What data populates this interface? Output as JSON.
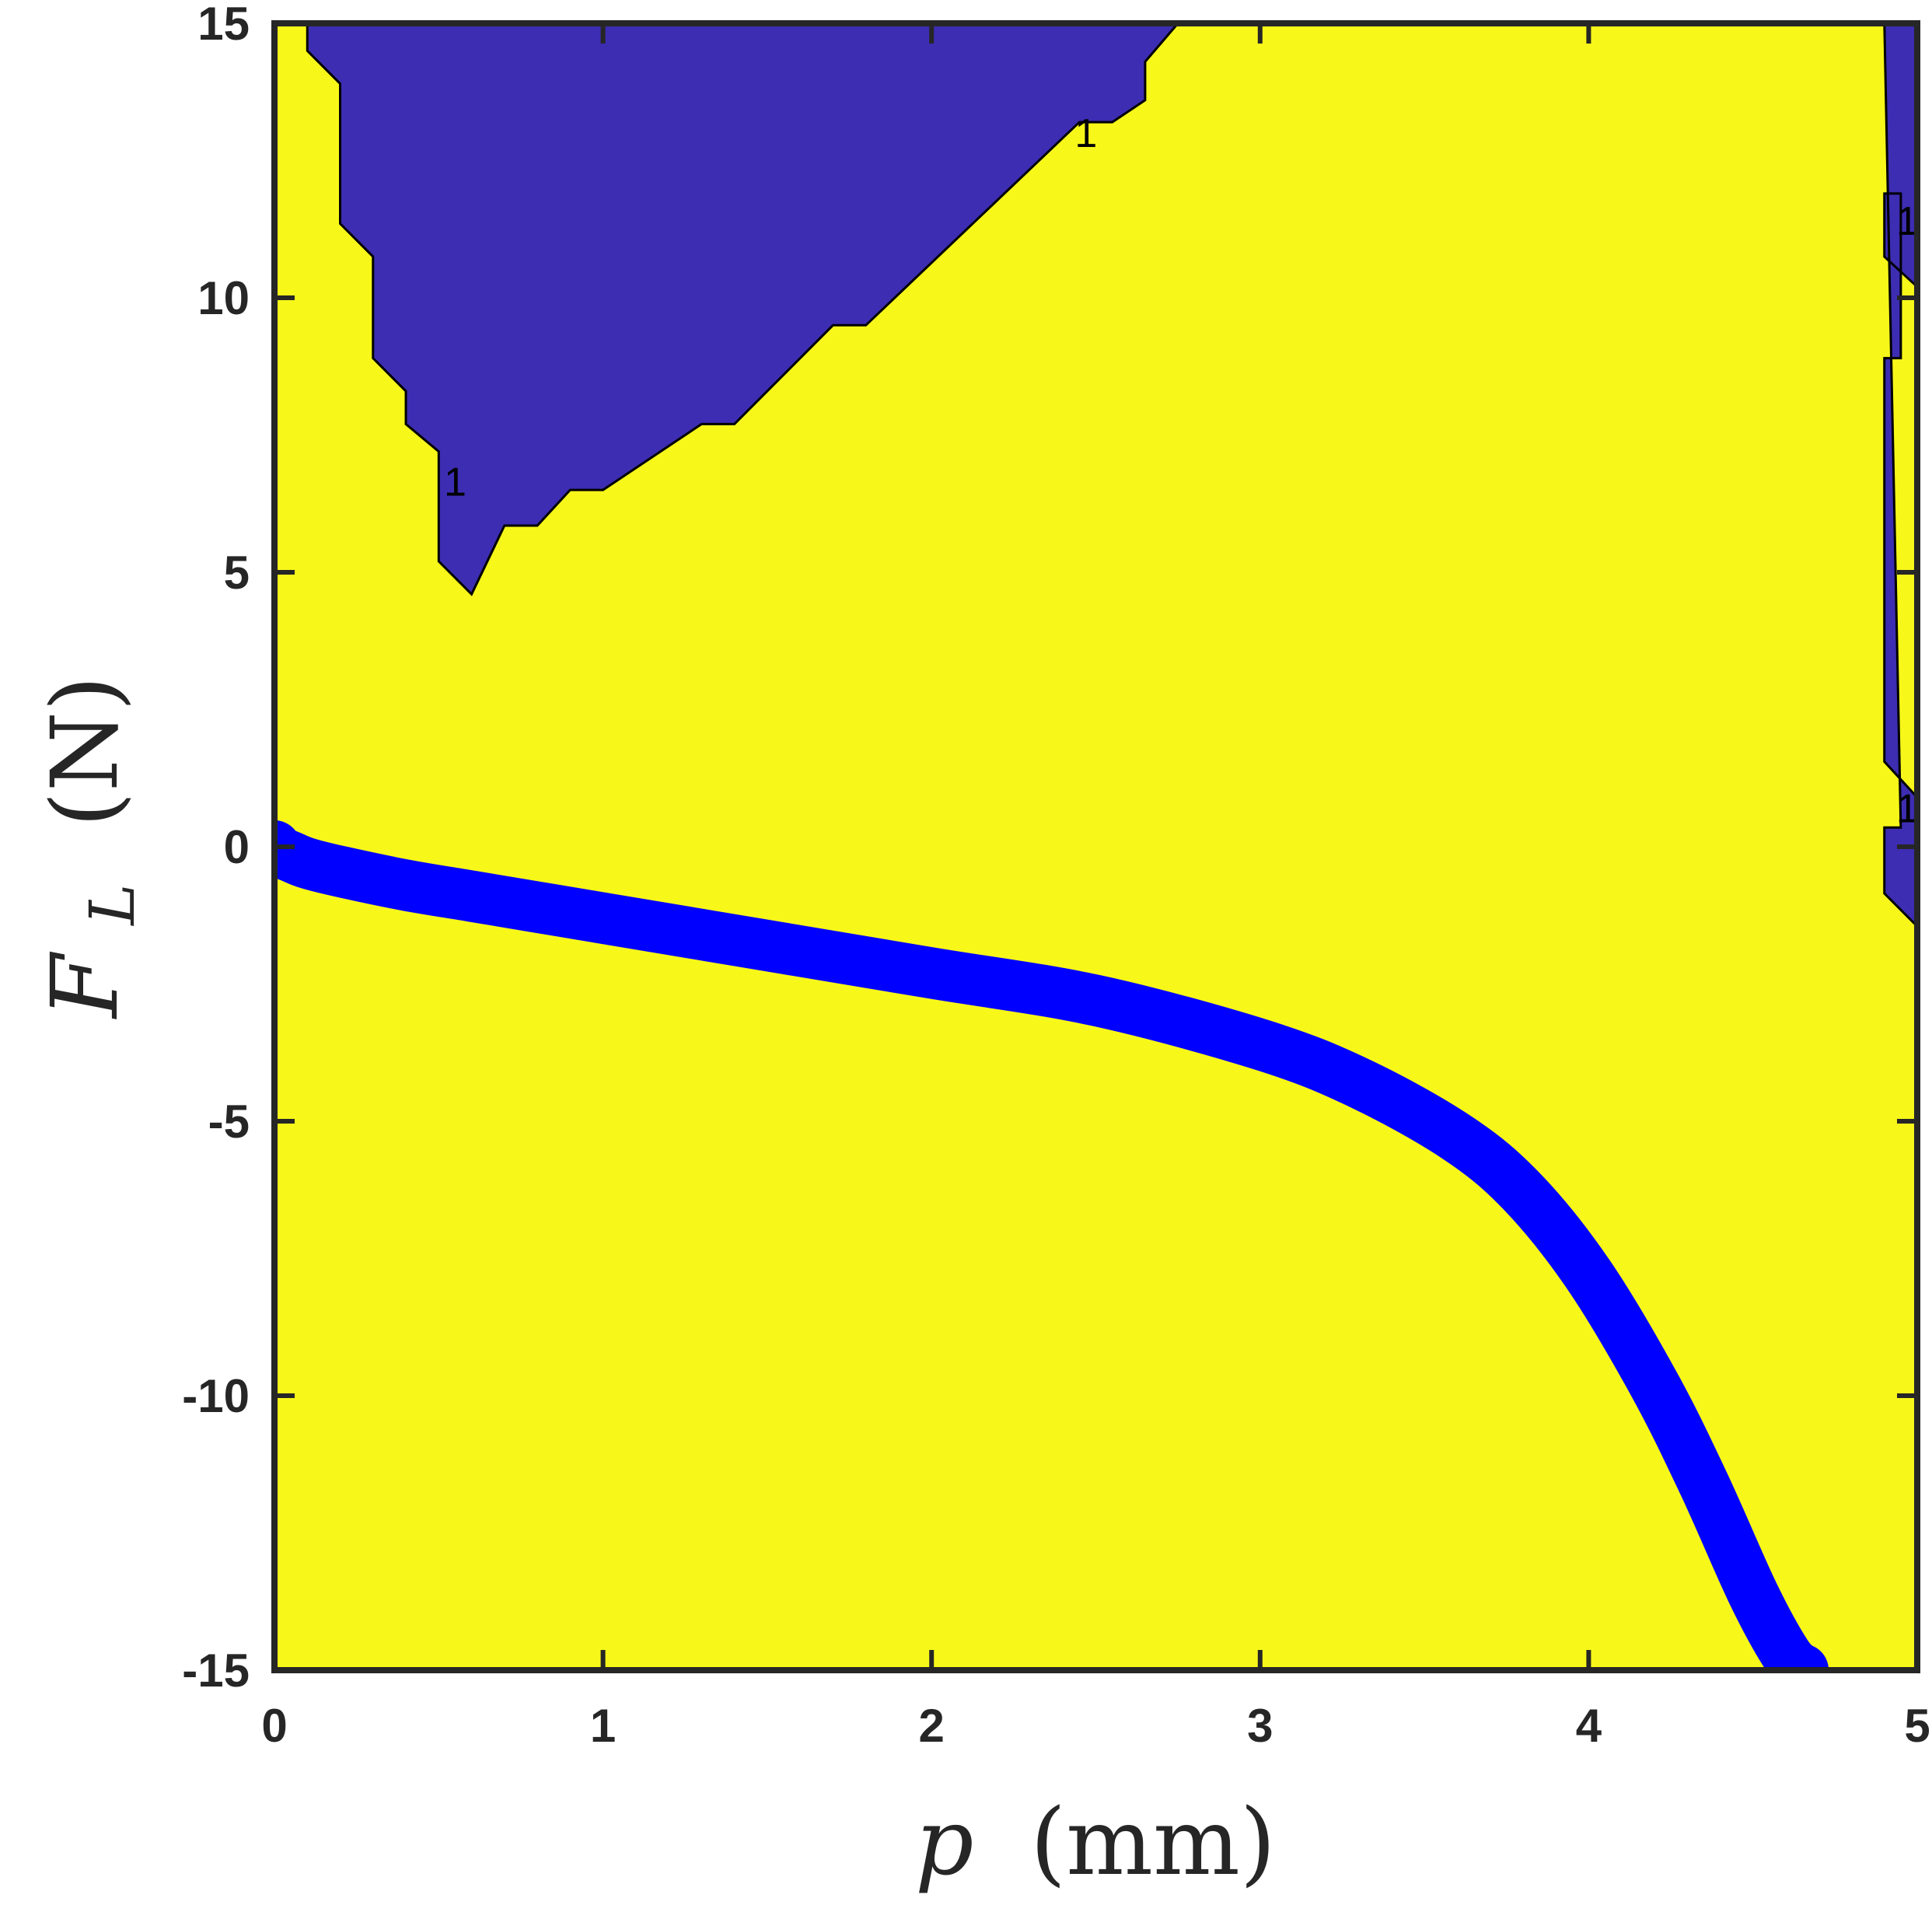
{
  "chart_data": {
    "type": "contour",
    "title": "",
    "xlabel_var": "p",
    "xlabel_unit": "(mm)",
    "ylabel_var": "F",
    "ylabel_sub": "L",
    "ylabel_unit": "(N)",
    "xlim": [
      0,
      5
    ],
    "ylim": [
      -15,
      15
    ],
    "xticks": [
      "0",
      "1",
      "2",
      "3",
      "4",
      "5"
    ],
    "yticks": [
      "-15",
      "-10",
      "-5",
      "0",
      "5",
      "10",
      "15"
    ],
    "grid": false,
    "colors": {
      "background_region": "#f7f71a",
      "region": "#3d2db2",
      "curve": "#0000ff",
      "contour_line": "#000000",
      "axes": "#262626"
    },
    "regions": [
      {
        "label": "upper-left region",
        "points": [
          [
            0.1,
            15
          ],
          [
            2.75,
            15
          ],
          [
            2.65,
            14.3
          ],
          [
            2.65,
            13.6
          ],
          [
            2.55,
            13.2
          ],
          [
            2.45,
            13.2
          ],
          [
            1.8,
            9.5
          ],
          [
            1.7,
            9.5
          ],
          [
            1.4,
            7.7
          ],
          [
            1.3,
            7.7
          ],
          [
            1.0,
            6.5
          ],
          [
            0.9,
            6.5
          ],
          [
            0.8,
            5.85
          ],
          [
            0.7,
            5.85
          ],
          [
            0.6,
            4.6
          ],
          [
            0.5,
            5.2
          ],
          [
            0.5,
            7.2
          ],
          [
            0.4,
            7.7
          ],
          [
            0.4,
            8.3
          ],
          [
            0.3,
            8.9
          ],
          [
            0.3,
            10.75
          ],
          [
            0.2,
            11.35
          ],
          [
            0.2,
            13.9
          ],
          [
            0.1,
            14.5
          ]
        ]
      },
      {
        "label": "right-edge region",
        "points": [
          [
            4.9,
            15
          ],
          [
            5.0,
            15
          ],
          [
            5.0,
            10.2
          ],
          [
            4.9,
            10.75
          ],
          [
            4.9,
            11.9
          ],
          [
            4.95,
            11.9
          ],
          [
            4.95,
            8.9
          ],
          [
            4.9,
            8.9
          ],
          [
            4.9,
            1.55
          ],
          [
            5.0,
            0.9
          ],
          [
            5.0,
            -1.45
          ],
          [
            4.9,
            -0.85
          ],
          [
            4.9,
            0.35
          ],
          [
            4.95,
            0.35
          ]
        ]
      }
    ],
    "curve": {
      "label": "response curve",
      "x": [
        0,
        0.02,
        0.05,
        0.1,
        0.2,
        0.4,
        0.6,
        0.8,
        1.0,
        1.5,
        2.0,
        2.5,
        3.0,
        3.3,
        3.6,
        3.8,
        4.0,
        4.2,
        4.35,
        4.5,
        4.6,
        4.65
      ],
      "y": [
        0,
        -0.1,
        -0.18,
        -0.3,
        -0.45,
        -0.7,
        -0.9,
        -1.1,
        -1.3,
        -1.8,
        -2.3,
        -2.8,
        -3.6,
        -4.3,
        -5.3,
        -6.3,
        -7.8,
        -9.8,
        -11.6,
        -13.6,
        -14.7,
        -15
      ]
    },
    "start_marker": [
      0,
      0
    ],
    "end_marker": [
      4.65,
      -15
    ],
    "contour_labels": [
      {
        "x": 0.55,
        "y": 6.65,
        "text": "1"
      },
      {
        "x": 2.47,
        "y": 13.0,
        "text": "1"
      },
      {
        "x": 4.97,
        "y": 11.4,
        "text": "1"
      },
      {
        "x": 4.97,
        "y": 0.7,
        "text": "1"
      }
    ]
  }
}
